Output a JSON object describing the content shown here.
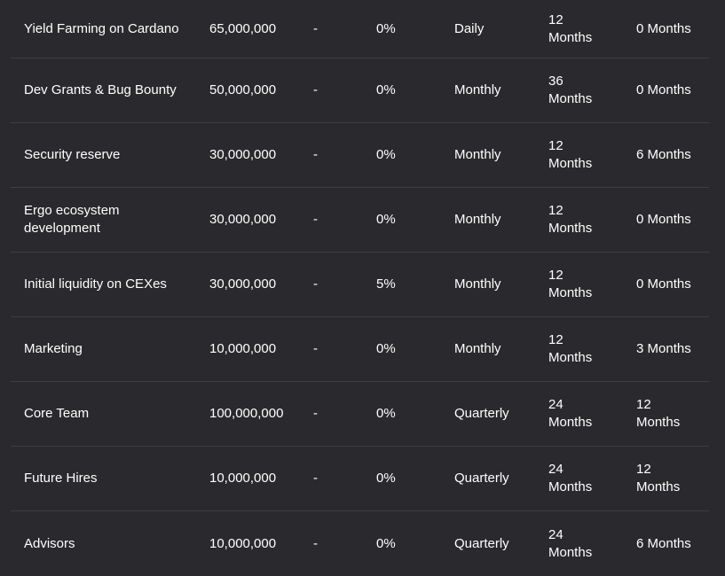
{
  "rows": [
    {
      "name": "Yield Farming on Cardano",
      "amount": "65,000,000",
      "dash": "-",
      "tge": "0%",
      "frequency": "Daily",
      "vesting": [
        "12",
        "Months"
      ],
      "cliff": [
        "0 Months"
      ]
    },
    {
      "name": "Dev Grants & Bug Bounty",
      "amount": "50,000,000",
      "dash": "-",
      "tge": "0%",
      "frequency": "Monthly",
      "vesting": [
        "36",
        "Months"
      ],
      "cliff": [
        "0 Months"
      ]
    },
    {
      "name": "Security reserve",
      "amount": "30,000,000",
      "dash": "-",
      "tge": "0%",
      "frequency": "Monthly",
      "vesting": [
        "12",
        "Months"
      ],
      "cliff": [
        "6 Months"
      ]
    },
    {
      "name": "Ergo ecosystem development",
      "amount": "30,000,000",
      "dash": "-",
      "tge": "0%",
      "frequency": "Monthly",
      "vesting": [
        "12",
        "Months"
      ],
      "cliff": [
        "0 Months"
      ]
    },
    {
      "name": "Initial liquidity on CEXes",
      "amount": "30,000,000",
      "dash": "-",
      "tge": "5%",
      "frequency": "Monthly",
      "vesting": [
        "12",
        "Months"
      ],
      "cliff": [
        "0 Months"
      ]
    },
    {
      "name": "Marketing",
      "amount": "10,000,000",
      "dash": "-",
      "tge": "0%",
      "frequency": "Monthly",
      "vesting": [
        "12",
        "Months"
      ],
      "cliff": [
        "3 Months"
      ]
    },
    {
      "name": "Core Team",
      "amount": "100,000,000",
      "dash": "-",
      "tge": "0%",
      "frequency": "Quarterly",
      "vesting": [
        "24",
        "Months"
      ],
      "cliff": [
        "12",
        "Months"
      ]
    },
    {
      "name": "Future Hires",
      "amount": "10,000,000",
      "dash": "-",
      "tge": "0%",
      "frequency": "Quarterly",
      "vesting": [
        "24",
        "Months"
      ],
      "cliff": [
        "12",
        "Months"
      ]
    },
    {
      "name": "Advisors",
      "amount": "10,000,000",
      "dash": "-",
      "tge": "0%",
      "frequency": "Quarterly",
      "vesting": [
        "24",
        "Months"
      ],
      "cliff": [
        "6 Months"
      ]
    }
  ]
}
